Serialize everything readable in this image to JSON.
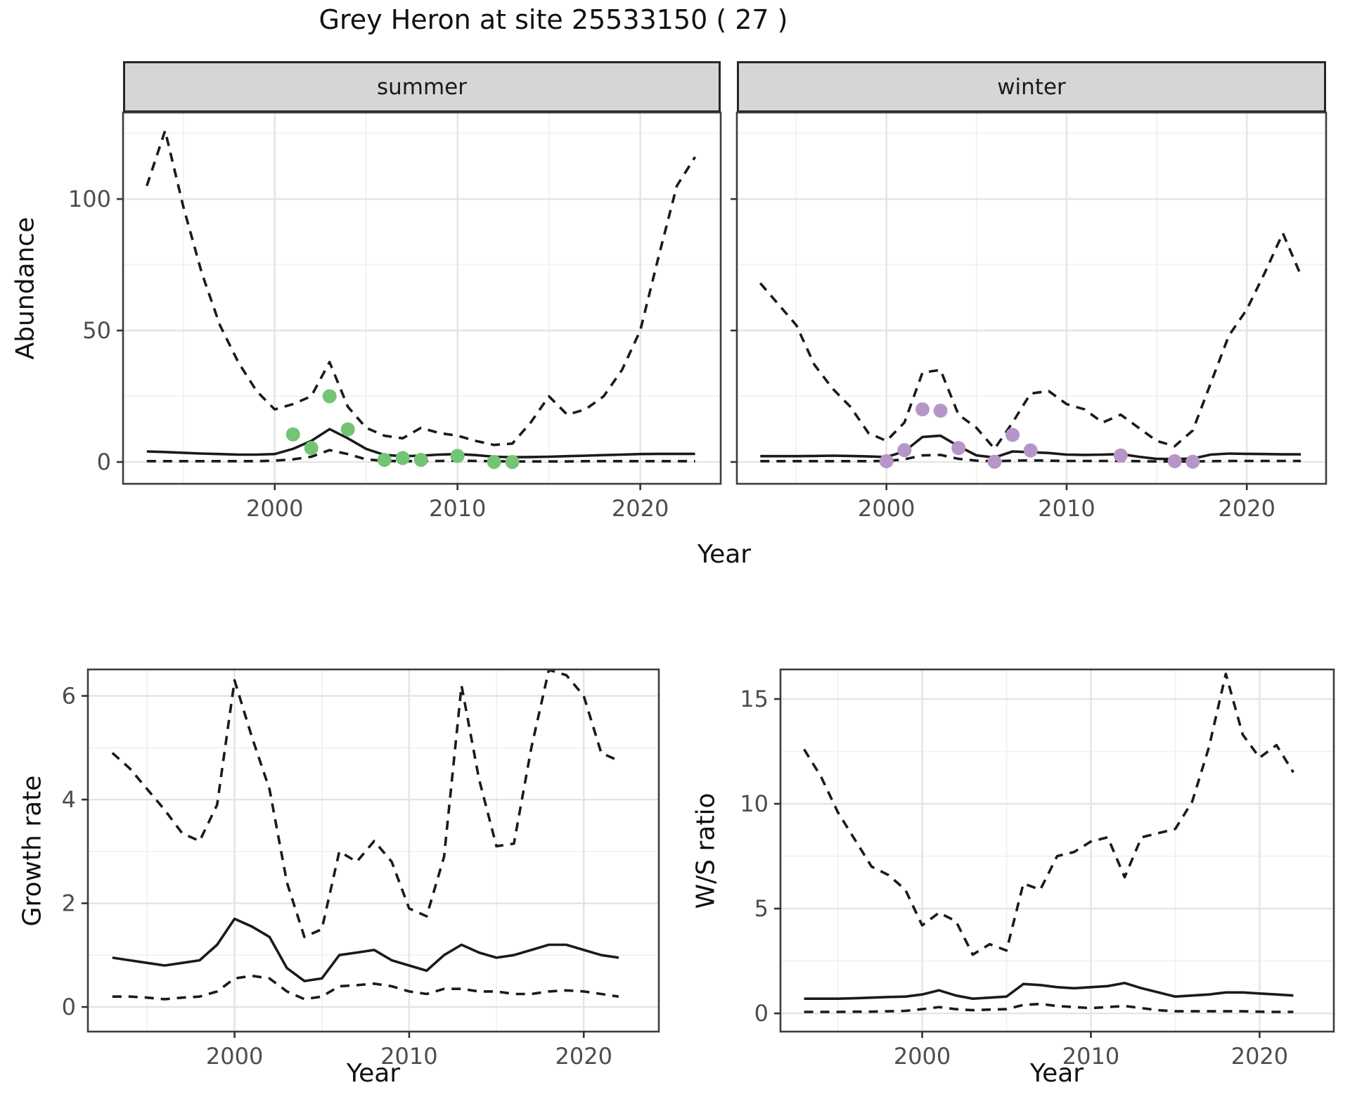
{
  "title": "Grey Heron at site 25533150 ( 27 )",
  "facets": {
    "summer": "summer",
    "winter": "winter"
  },
  "axes": {
    "abundance_label": "Abundance",
    "year_label": "Year",
    "growth_label": "Growth rate",
    "ws_label": "W/S ratio"
  },
  "colors": {
    "line": "#1a1a1a",
    "summer_points": "#74c476",
    "winter_points": "#b696c8",
    "strip_bg": "#d6d6d6",
    "grid_major": "#e4e4e4",
    "grid_minor": "#f0f0f0",
    "panel_border": "#3d3d3d",
    "tick_text": "#4d4d4d"
  },
  "chart_data": [
    {
      "id": "abundance-summer",
      "type": "line",
      "facet": "summer",
      "xlabel": "Year",
      "ylabel": "Abundance",
      "legend": "none",
      "grid": true,
      "x": [
        1993,
        1994,
        1995,
        1996,
        1997,
        1998,
        1999,
        2000,
        2001,
        2002,
        2003,
        2004,
        2005,
        2006,
        2007,
        2008,
        2009,
        2010,
        2011,
        2012,
        2013,
        2014,
        2015,
        2016,
        2017,
        2018,
        2019,
        2020,
        2021,
        2022,
        2023
      ],
      "series": [
        {
          "name": "upper_ci",
          "style": "dashed",
          "values": [
            105,
            126,
            97,
            72,
            52,
            38,
            27,
            20,
            22,
            25,
            38,
            21,
            13,
            10,
            9,
            13,
            11,
            10,
            8,
            6.5,
            7,
            15,
            25,
            18,
            20,
            25,
            35,
            50,
            78,
            105,
            116
          ]
        },
        {
          "name": "median",
          "style": "solid",
          "values": [
            4,
            3.8,
            3.5,
            3.2,
            3,
            2.8,
            2.8,
            3,
            5,
            8,
            12.5,
            9,
            5,
            2.7,
            2.2,
            2.4,
            2.8,
            3,
            2.6,
            2,
            1.8,
            1.9,
            2,
            2.2,
            2.4,
            2.6,
            2.8,
            3,
            3.1,
            3.1,
            3.1
          ]
        },
        {
          "name": "lower_ci",
          "style": "dashed",
          "values": [
            0.3,
            0.3,
            0.3,
            0.3,
            0.3,
            0.3,
            0.3,
            0.5,
            1,
            2,
            4.5,
            3,
            1,
            0.4,
            0.3,
            0.3,
            0.4,
            0.5,
            0.4,
            0.3,
            0.2,
            0.2,
            0.2,
            0.2,
            0.3,
            0.3,
            0.3,
            0.3,
            0.3,
            0.3,
            0.3
          ]
        }
      ],
      "observed_points": {
        "color": "#74c476",
        "points": [
          [
            2001,
            10.5
          ],
          [
            2002,
            5.3
          ],
          [
            2003,
            25
          ],
          [
            2004,
            12.4
          ],
          [
            2006,
            0.8
          ],
          [
            2007,
            1.5
          ],
          [
            2008,
            0.8
          ],
          [
            2010,
            2.3
          ],
          [
            2012,
            0
          ],
          [
            2013,
            0
          ]
        ]
      },
      "xticks": [
        2000,
        2010,
        2020
      ],
      "yticks": [
        0,
        50,
        100
      ],
      "xlim": [
        1991.7,
        2024.4
      ],
      "ylim": [
        -8.3,
        132.9
      ]
    },
    {
      "id": "abundance-winter",
      "type": "line",
      "facet": "winter",
      "xlabel": "Year",
      "ylabel": "Abundance",
      "legend": "none",
      "grid": true,
      "x": [
        1993,
        1994,
        1995,
        1996,
        1997,
        1998,
        1999,
        2000,
        2001,
        2002,
        2003,
        2004,
        2005,
        2006,
        2007,
        2008,
        2009,
        2010,
        2011,
        2012,
        2013,
        2014,
        2015,
        2016,
        2017,
        2018,
        2019,
        2020,
        2021,
        2022,
        2023
      ],
      "series": [
        {
          "name": "upper_ci",
          "style": "dashed",
          "values": [
            68,
            60,
            52,
            37,
            28,
            21,
            11,
            8,
            15,
            34,
            35,
            18,
            13,
            5,
            15,
            26,
            27,
            22,
            20,
            15,
            18,
            13,
            8,
            6,
            12,
            30,
            48,
            58,
            72,
            87,
            71
          ]
        },
        {
          "name": "median",
          "style": "solid",
          "values": [
            2.2,
            2.2,
            2.2,
            2.3,
            2.4,
            2.3,
            2.1,
            1.9,
            4,
            9.5,
            10,
            6,
            2.5,
            1.7,
            4,
            3.7,
            3.4,
            2.8,
            2.7,
            2.8,
            3,
            2,
            1.2,
            1.1,
            1.3,
            2.8,
            3.2,
            3.1,
            3,
            2.9,
            2.9
          ]
        },
        {
          "name": "lower_ci",
          "style": "dashed",
          "values": [
            0.3,
            0.3,
            0.3,
            0.3,
            0.3,
            0.3,
            0.3,
            0.4,
            1,
            2.5,
            2.7,
            1.2,
            0.5,
            0.3,
            0.5,
            0.6,
            0.5,
            0.4,
            0.4,
            0.4,
            0.4,
            0.3,
            0.2,
            0.2,
            0.2,
            0.3,
            0.4,
            0.4,
            0.4,
            0.4,
            0.4
          ]
        }
      ],
      "observed_points": {
        "color": "#b696c8",
        "points": [
          [
            2000,
            0.3
          ],
          [
            2001,
            4.5
          ],
          [
            2002,
            20
          ],
          [
            2003,
            19.5
          ],
          [
            2004,
            5.3
          ],
          [
            2006,
            0.1
          ],
          [
            2007,
            10.3
          ],
          [
            2008,
            4.4
          ],
          [
            2013,
            2.5
          ],
          [
            2016,
            0.3
          ],
          [
            2017,
            0.1
          ]
        ]
      },
      "xticks": [
        2000,
        2010,
        2020
      ],
      "yticks": [
        0,
        50,
        100
      ],
      "xlim": [
        1991.7,
        2024.4
      ],
      "ylim": [
        -8.3,
        132.9
      ]
    },
    {
      "id": "growth-rate",
      "type": "line",
      "xlabel": "Year",
      "ylabel": "Growth rate",
      "legend": "none",
      "grid": true,
      "x": [
        1993,
        1994,
        1995,
        1996,
        1997,
        1998,
        1999,
        2000,
        2001,
        2002,
        2003,
        2004,
        2005,
        2006,
        2007,
        2008,
        2009,
        2010,
        2011,
        2012,
        2013,
        2014,
        2015,
        2016,
        2017,
        2018,
        2019,
        2020,
        2021,
        2022
      ],
      "series": [
        {
          "name": "upper_ci",
          "style": "dashed",
          "values": [
            4.9,
            4.6,
            4.2,
            3.8,
            3.35,
            3.2,
            3.9,
            6.3,
            5.2,
            4.2,
            2.4,
            1.35,
            1.5,
            3.0,
            2.8,
            3.2,
            2.8,
            1.9,
            1.75,
            2.9,
            6.2,
            4.4,
            3.1,
            3.15,
            5.0,
            6.5,
            6.4,
            6.0,
            4.9,
            4.75
          ]
        },
        {
          "name": "median",
          "style": "solid",
          "values": [
            0.95,
            0.9,
            0.85,
            0.8,
            0.85,
            0.9,
            1.2,
            1.7,
            1.55,
            1.35,
            0.75,
            0.5,
            0.55,
            1.0,
            1.05,
            1.1,
            0.9,
            0.8,
            0.7,
            1.0,
            1.2,
            1.05,
            0.95,
            1.0,
            1.1,
            1.2,
            1.2,
            1.1,
            1.0,
            0.95
          ]
        },
        {
          "name": "lower_ci",
          "style": "dashed",
          "values": [
            0.2,
            0.2,
            0.18,
            0.15,
            0.18,
            0.2,
            0.3,
            0.55,
            0.6,
            0.55,
            0.3,
            0.15,
            0.2,
            0.4,
            0.42,
            0.45,
            0.4,
            0.3,
            0.25,
            0.35,
            0.35,
            0.3,
            0.3,
            0.25,
            0.25,
            0.3,
            0.32,
            0.3,
            0.25,
            0.2
          ]
        }
      ],
      "xticks": [
        2000,
        2010,
        2020
      ],
      "yticks": [
        0,
        2,
        4,
        6
      ],
      "xlim": [
        1991.6,
        2024.3
      ],
      "ylim": [
        -0.475,
        6.51
      ]
    },
    {
      "id": "ws-ratio",
      "type": "line",
      "xlabel": "Year",
      "ylabel": "W/S ratio",
      "legend": "none",
      "grid": true,
      "x": [
        1993,
        1994,
        1995,
        1996,
        1997,
        1998,
        1999,
        2000,
        2001,
        2002,
        2003,
        2004,
        2005,
        2006,
        2007,
        2008,
        2009,
        2010,
        2011,
        2012,
        2013,
        2014,
        2015,
        2016,
        2017,
        2018,
        2019,
        2020,
        2021,
        2022
      ],
      "series": [
        {
          "name": "upper_ci",
          "style": "dashed",
          "values": [
            12.6,
            11.3,
            9.6,
            8.3,
            7.0,
            6.6,
            5.9,
            4.2,
            4.8,
            4.4,
            2.8,
            3.3,
            3.0,
            6.2,
            5.9,
            7.5,
            7.7,
            8.2,
            8.4,
            6.5,
            8.4,
            8.6,
            8.8,
            10.1,
            12.7,
            16.2,
            13.3,
            12.2,
            12.8,
            11.5
          ]
        },
        {
          "name": "median",
          "style": "solid",
          "values": [
            0.7,
            0.7,
            0.7,
            0.72,
            0.75,
            0.78,
            0.8,
            0.9,
            1.1,
            0.85,
            0.7,
            0.75,
            0.8,
            1.4,
            1.35,
            1.25,
            1.2,
            1.25,
            1.3,
            1.45,
            1.2,
            1.0,
            0.8,
            0.85,
            0.9,
            1.0,
            1.0,
            0.95,
            0.9,
            0.85
          ]
        },
        {
          "name": "lower_ci",
          "style": "dashed",
          "values": [
            0.07,
            0.07,
            0.07,
            0.08,
            0.08,
            0.1,
            0.12,
            0.2,
            0.3,
            0.2,
            0.15,
            0.18,
            0.2,
            0.4,
            0.45,
            0.35,
            0.3,
            0.25,
            0.3,
            0.35,
            0.25,
            0.15,
            0.1,
            0.1,
            0.1,
            0.1,
            0.1,
            0.08,
            0.07,
            0.07
          ]
        }
      ],
      "xticks": [
        2000,
        2010,
        2020
      ],
      "yticks": [
        0,
        5,
        10,
        15
      ],
      "xlim": [
        1991.6,
        2024.4
      ],
      "ylim": [
        -0.87,
        16.41
      ]
    }
  ]
}
